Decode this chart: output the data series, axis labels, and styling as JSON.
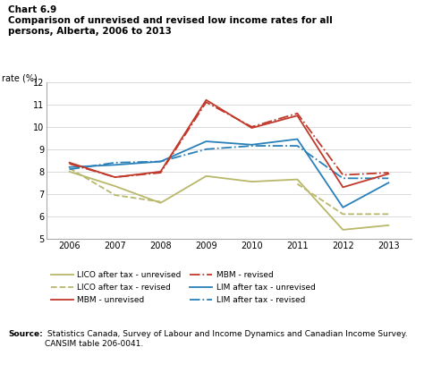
{
  "title_line1": "Chart 6.9",
  "title_line2": "Comparison of unrevised and revised low income rates for all",
  "title_line3": "persons, Alberta, 2006 to 2013",
  "ylabel": "rate (%)",
  "source_bold": "Source:",
  "source_rest": " Statistics Canada, Survey of Labour and Income Dynamics and Canadian Income Survey. CANSIM table 206-0041.",
  "years": [
    2006,
    2007,
    2008,
    2009,
    2010,
    2011,
    2012,
    2013
  ],
  "ylim": [
    5,
    12
  ],
  "yticks": [
    5,
    6,
    7,
    8,
    9,
    10,
    11,
    12
  ],
  "lico_unrevised": [
    8.0,
    7.35,
    6.6,
    7.8,
    7.55,
    7.65,
    5.4,
    5.6
  ],
  "lico_revised": [
    8.15,
    6.95,
    6.65,
    null,
    null,
    7.45,
    6.1,
    6.1
  ],
  "mbm_unrevised": [
    8.4,
    7.75,
    8.0,
    11.2,
    9.95,
    10.5,
    7.3,
    7.9
  ],
  "mbm_revised": [
    8.35,
    7.75,
    7.95,
    11.1,
    10.0,
    10.6,
    7.85,
    7.95
  ],
  "lim_unrevised": [
    8.2,
    8.3,
    8.45,
    9.35,
    9.2,
    9.45,
    6.4,
    7.5
  ],
  "lim_revised": [
    8.1,
    8.4,
    8.45,
    9.0,
    9.15,
    9.15,
    7.7,
    7.7
  ],
  "color_lico": "#b8b86a",
  "color_mbm": "#c0392b",
  "color_lim": "#2980b9",
  "bg_color": "#ffffff",
  "plot_bg": "#ffffff"
}
